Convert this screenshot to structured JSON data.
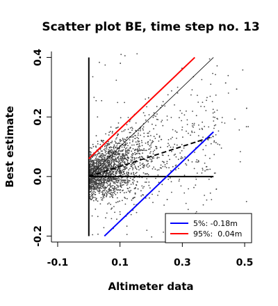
{
  "chart_data": {
    "type": "scatter",
    "title": "Scatter plot BE, time step no. 13",
    "xlabel": "Altimeter data",
    "ylabel": "Best estimate",
    "xlim": [
      -0.12,
      0.52
    ],
    "ylim": [
      -0.22,
      0.42
    ],
    "xticks": [
      -0.1,
      0.1,
      0.3,
      0.5
    ],
    "xtick_labels": [
      "-0.1",
      "0.1",
      "0.3",
      "0.5"
    ],
    "yticks": [
      -0.2,
      0.0,
      0.2,
      0.4
    ],
    "ytick_labels": [
      "-0.2",
      "0.0",
      "0.2",
      "0.4"
    ],
    "grid": false,
    "legend_position": "bottom-right",
    "point_cloud": {
      "count": 2200,
      "x_range": [
        0.0,
        0.52
      ],
      "y_range": [
        -0.22,
        0.42
      ],
      "y_median_line": {
        "intercept": 0.0,
        "slope": 0.35
      }
    },
    "reference_lines": [
      {
        "name": "1:1 line",
        "x": [
          0.0,
          0.4
        ],
        "y": [
          0.0,
          0.4
        ],
        "color": "#000000",
        "style": "solid",
        "width": 0.8
      },
      {
        "name": "regression fit",
        "x": [
          0.0,
          0.4
        ],
        "y": [
          0.0,
          0.135
        ],
        "color": "#000000",
        "style": "dashed",
        "width": 2
      },
      {
        "name": "zero line",
        "x": [
          0.0,
          0.4
        ],
        "y": [
          0.0,
          0.0
        ],
        "color": "#000000",
        "style": "solid",
        "width": 2
      },
      {
        "name": "vertical zero",
        "x": [
          0.0,
          0.0
        ],
        "y": [
          -0.2,
          0.4
        ],
        "color": "#000000",
        "style": "solid",
        "width": 2
      }
    ],
    "series": [
      {
        "name": "5%: -0.18m",
        "x": [
          0.05,
          0.4
        ],
        "y": [
          -0.2,
          0.15
        ],
        "color": "#0000ff"
      },
      {
        "name": "95%:  0.04m",
        "x": [
          0.0,
          0.34
        ],
        "y": [
          0.06,
          0.4
        ],
        "color": "#ff0000"
      }
    ]
  }
}
